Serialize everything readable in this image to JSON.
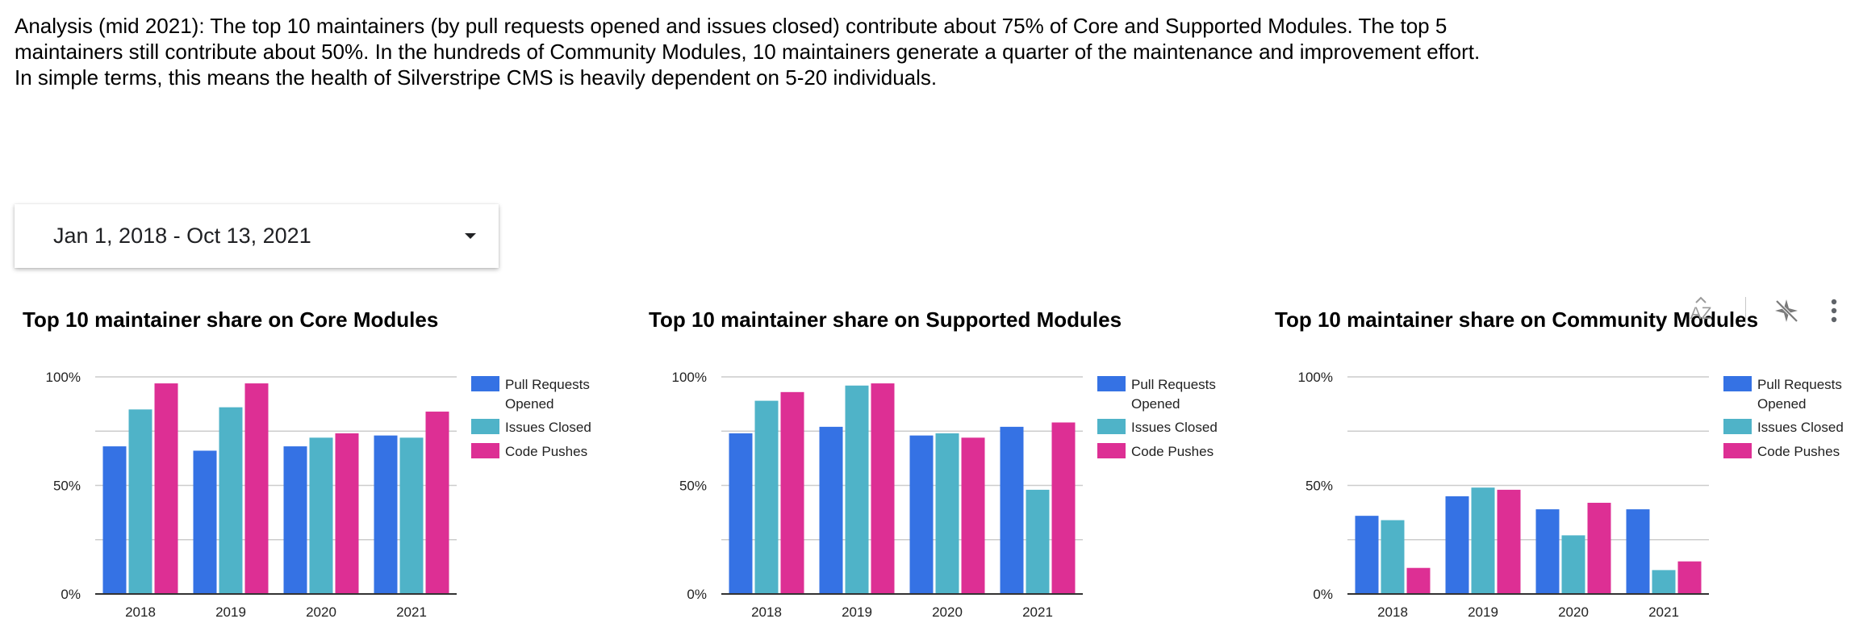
{
  "analysis": {
    "lines": [
      "Analysis (mid 2021): The top 10 maintainers (by pull requests opened and issues closed) contribute about 75% of Core and Supported Modules. The top 5",
      "maintainers still contribute about 50%. In the hundreds of Community Modules, 10 maintainers generate a quarter of the maintenance and improvement effort.",
      "In simple terms, this means the health of Silverstripe CMS is heavily dependent on 5-20 individuals."
    ]
  },
  "date_range": {
    "label": "Jan 1, 2018 - Oct 13, 2021",
    "icon": "caret-down-icon"
  },
  "toolbar": {
    "icons": [
      "sort-az-icon",
      "cross-filter-off-icon",
      "more-vert-icon"
    ]
  },
  "colors": {
    "pull_requests": "#3572e4",
    "issues": "#4fb3c8",
    "pushes": "#dd2f94",
    "grid": "#cccccc",
    "axis": "#333333"
  },
  "chart_data": [
    {
      "type": "bar",
      "title": "Top 10 maintainer share on Core Modules",
      "categories": [
        "2018",
        "2019",
        "2020",
        "2021"
      ],
      "ylim": [
        0,
        100
      ],
      "yticks": [
        "0%",
        "50%",
        "100%"
      ],
      "grid": true,
      "legend": "right",
      "series": [
        {
          "name": "Pull Requests Opened",
          "values": [
            68,
            66,
            68,
            73
          ]
        },
        {
          "name": "Issues Closed",
          "values": [
            85,
            86,
            72,
            72
          ]
        },
        {
          "name": "Code Pushes",
          "values": [
            97,
            97,
            74,
            84
          ]
        }
      ]
    },
    {
      "type": "bar",
      "title": "Top 10 maintainer share on Supported Modules",
      "categories": [
        "2018",
        "2019",
        "2020",
        "2021"
      ],
      "ylim": [
        0,
        100
      ],
      "yticks": [
        "0%",
        "50%",
        "100%"
      ],
      "grid": true,
      "legend": "right",
      "series": [
        {
          "name": "Pull Requests Opened",
          "values": [
            74,
            77,
            73,
            77
          ]
        },
        {
          "name": "Issues Closed",
          "values": [
            89,
            96,
            74,
            48
          ]
        },
        {
          "name": "Code Pushes",
          "values": [
            93,
            97,
            72,
            79
          ]
        }
      ]
    },
    {
      "type": "bar",
      "title": "Top 10 maintainer share on Community Modules",
      "categories": [
        "2018",
        "2019",
        "2020",
        "2021"
      ],
      "ylim": [
        0,
        100
      ],
      "yticks": [
        "0%",
        "50%",
        "100%"
      ],
      "grid": true,
      "legend": "right",
      "series": [
        {
          "name": "Pull Requests Opened",
          "values": [
            36,
            45,
            39,
            39
          ]
        },
        {
          "name": "Issues Closed",
          "values": [
            34,
            49,
            27,
            11
          ]
        },
        {
          "name": "Code Pushes",
          "values": [
            12,
            48,
            42,
            15
          ]
        }
      ]
    }
  ]
}
